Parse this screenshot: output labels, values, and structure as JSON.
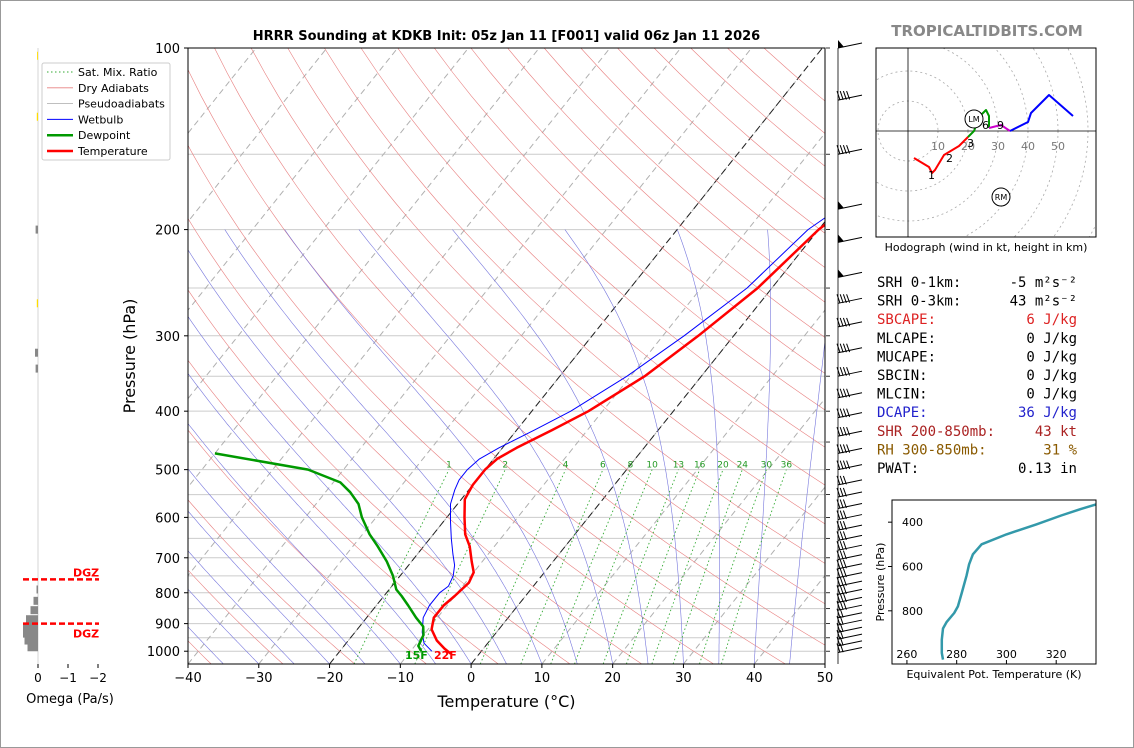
{
  "chart_data": [
    {
      "type": "skew-t",
      "title": "HRRR Sounding at KDKB Init: 05z Jan 11 [F001] valid 06z Jan 11 2026",
      "xlabel": "Temperature (°C)",
      "ylabel": "Pressure (hPa)",
      "xlim": [
        -40,
        50
      ],
      "ylim": [
        1050,
        100
      ],
      "x_ticks": [
        -40,
        -30,
        -20,
        -10,
        0,
        10,
        20,
        30,
        40,
        50
      ],
      "x_tick_labels": [
        "−40",
        "−30",
        "−20",
        "−10",
        "0",
        "10",
        "20",
        "30",
        "40",
        "50"
      ],
      "y_ticks": [
        1000,
        900,
        800,
        700,
        600,
        500,
        400,
        300,
        200,
        100
      ],
      "legend": [
        "Sat. Mix. Ratio",
        "Dry Adiabats",
        "Pseudoadiabats",
        "Wetbulb",
        "Dewpoint",
        "Temperature"
      ],
      "legend_position": "top-left",
      "mixing_ratio_labels": [
        "1",
        "2",
        "4",
        "6",
        "8",
        "10",
        "13",
        "16",
        "20",
        "24",
        "30",
        "36"
      ],
      "series": [
        {
          "name": "Temperature",
          "color": "#ff0000",
          "points": [
            [
              -4,
              1010
            ],
            [
              -5.5,
              990
            ],
            [
              -7.5,
              960
            ],
            [
              -9.5,
              920
            ],
            [
              -10.5,
              880
            ],
            [
              -10.5,
              840
            ],
            [
              -10,
              810
            ],
            [
              -9.5,
              770
            ],
            [
              -10,
              740
            ],
            [
              -11.5,
              710
            ],
            [
              -13.5,
              670
            ],
            [
              -15.5,
              640
            ],
            [
              -17.5,
              600
            ],
            [
              -19.5,
              560
            ],
            [
              -20,
              530
            ],
            [
              -20,
              500
            ],
            [
              -19.5,
              480
            ],
            [
              -18,
              460
            ],
            [
              -15,
              430
            ],
            [
              -12,
              400
            ],
            [
              -8,
              350
            ],
            [
              -5,
              300
            ],
            [
              -2,
              250
            ],
            [
              0,
              200
            ],
            [
              2,
              180
            ],
            [
              4,
              160
            ],
            [
              6,
              140
            ],
            [
              8,
              120
            ],
            [
              9,
              105
            ],
            [
              10,
              100
            ]
          ]
        },
        {
          "name": "Wetbulb",
          "color": "#0000ff",
          "points": [
            [
              -7,
              1000
            ],
            [
              -9,
              970
            ],
            [
              -10.5,
              930
            ],
            [
              -12,
              880
            ],
            [
              -12.5,
              840
            ],
            [
              -12.5,
              800
            ],
            [
              -12,
              780
            ],
            [
              -12.5,
              750
            ],
            [
              -13.5,
              720
            ],
            [
              -15,
              690
            ],
            [
              -17,
              650
            ],
            [
              -19,
              610
            ],
            [
              -21,
              570
            ],
            [
              -22,
              540
            ],
            [
              -22.5,
              520
            ],
            [
              -22.5,
              500
            ],
            [
              -22,
              480
            ],
            [
              -20.5,
              460
            ],
            [
              -17.5,
              430
            ],
            [
              -14.5,
              400
            ],
            [
              -10.5,
              350
            ],
            [
              -7,
              300
            ],
            [
              -3.5,
              250
            ],
            [
              -1.5,
              200
            ],
            [
              1,
              180
            ],
            [
              3,
              160
            ],
            [
              5,
              140
            ],
            [
              7,
              120
            ],
            [
              8.5,
              105
            ],
            [
              9.5,
              100
            ]
          ]
        },
        {
          "name": "Dewpoint",
          "color": "#009900",
          "points": [
            [
              -8.5,
              1000
            ],
            [
              -9.5,
              980
            ],
            [
              -10,
              940
            ],
            [
              -11,
              910
            ],
            [
              -13,
              880
            ],
            [
              -15.5,
              840
            ],
            [
              -17.5,
              810
            ],
            [
              -19,
              790
            ],
            [
              -21,
              750
            ],
            [
              -23.5,
              710
            ],
            [
              -26.5,
              670
            ],
            [
              -29,
              640
            ],
            [
              -32,
              600
            ],
            [
              -34,
              570
            ],
            [
              -36.5,
              545
            ],
            [
              -39,
              525
            ],
            [
              -45,
              500
            ],
            [
              -60,
              470
            ]
          ]
        }
      ],
      "annotations": [
        {
          "text": "15F",
          "color": "#009900"
        },
        {
          "text": "22F",
          "color": "#ff0000"
        }
      ]
    },
    {
      "type": "hodograph",
      "title": "Hodograph (wind in kt, height in km)",
      "ring_labels": [
        "10",
        "20",
        "30",
        "40",
        "50"
      ],
      "height_labels": [
        "1",
        "2",
        "3",
        "6",
        "9"
      ],
      "storm_markers": [
        "LM",
        "RM"
      ],
      "segments": [
        {
          "color": "#ff0000",
          "points": [
            [
              2,
              -9
            ],
            [
              7,
              -12
            ],
            [
              8,
              -14
            ],
            [
              9,
              -13
            ],
            [
              12,
              -8
            ],
            [
              17,
              -5
            ],
            [
              20,
              -2
            ]
          ]
        },
        {
          "color": "#009900",
          "points": [
            [
              20,
              -2
            ],
            [
              22,
              0
            ],
            [
              24,
              5
            ],
            [
              26,
              7
            ],
            [
              27,
              5
            ],
            [
              27,
              1
            ]
          ]
        },
        {
          "color": "#cc00cc",
          "points": [
            [
              27,
              1
            ],
            [
              31,
              2
            ],
            [
              34,
              0
            ]
          ]
        },
        {
          "color": "#0000ff",
          "points": [
            [
              34,
              0
            ],
            [
              40,
              3
            ],
            [
              41,
              6
            ],
            [
              47,
              12
            ],
            [
              55,
              5
            ]
          ]
        }
      ]
    },
    {
      "type": "line",
      "xlabel": "Equivalent Pot. Temperature (K)",
      "ylabel": "Pressure (hPa)",
      "x_ticks": [
        "260",
        "280",
        "300",
        "320"
      ],
      "y_ticks": [
        "400",
        "600",
        "800"
      ],
      "xlim": [
        254,
        336
      ],
      "ylim": [
        1040,
        300
      ],
      "series": [
        {
          "color": "#3399aa",
          "points": [
            [
              274.5,
              1020
            ],
            [
              274,
              990
            ],
            [
              274,
              930
            ],
            [
              274.5,
              880
            ],
            [
              276,
              850
            ],
            [
              279,
              810
            ],
            [
              280.5,
              780
            ],
            [
              282,
              720
            ],
            [
              284,
              640
            ],
            [
              285,
              590
            ],
            [
              286.5,
              545
            ],
            [
              290,
              500
            ],
            [
              300,
              455
            ],
            [
              312,
              410
            ],
            [
              322,
              370
            ],
            [
              330,
              340
            ],
            [
              336,
              320
            ]
          ]
        }
      ]
    },
    {
      "type": "bar",
      "xlabel": "Omega (Pa/s)",
      "x_ticks": [
        "0",
        "−1",
        "−2"
      ],
      "dgz_labels": [
        "DGZ",
        "DGZ"
      ],
      "dgz_pressures": [
        760,
        900
      ],
      "values": [
        {
          "p": 985,
          "v": 0.35,
          "color": "#888888"
        },
        {
          "p": 960,
          "v": 0.45,
          "color": "#888888"
        },
        {
          "p": 935,
          "v": 0.5,
          "color": "#888888"
        },
        {
          "p": 910,
          "v": 0.5,
          "color": "#888888"
        },
        {
          "p": 885,
          "v": 0.4,
          "color": "#888888"
        },
        {
          "p": 855,
          "v": 0.25,
          "color": "#888888"
        },
        {
          "p": 825,
          "v": 0.15,
          "color": "#888888"
        },
        {
          "p": 790,
          "v": 0.05,
          "color": "#888888"
        },
        {
          "p": 340,
          "v": 0.08,
          "color": "#888888"
        },
        {
          "p": 320,
          "v": 0.1,
          "color": "#888888"
        },
        {
          "p": 265,
          "v": 0.04,
          "color": "#ffdd00"
        },
        {
          "p": 200,
          "v": 0.08,
          "color": "#888888"
        },
        {
          "p": 130,
          "v": 0.04,
          "color": "#ffdd00"
        },
        {
          "p": 103,
          "v": 0.03,
          "color": "#ffdd00"
        }
      ]
    }
  ],
  "watermark": "TROPICALTIDBITS.COM",
  "indices": [
    {
      "label": "SRH 0-1km:",
      "value": "-5 m²s⁻²",
      "color": "#000000"
    },
    {
      "label": "SRH 0-3km:",
      "value": "43 m²s⁻²",
      "color": "#000000"
    },
    {
      "label": "SBCAPE:",
      "value": "6 J/kg",
      "color": "#dd2222"
    },
    {
      "label": "MLCAPE:",
      "value": "0 J/kg",
      "color": "#000000"
    },
    {
      "label": "MUCAPE:",
      "value": "0 J/kg",
      "color": "#000000"
    },
    {
      "label": "SBCIN:",
      "value": "0 J/kg",
      "color": "#000000"
    },
    {
      "label": "MLCIN:",
      "value": "0 J/kg",
      "color": "#000000"
    },
    {
      "label": "DCAPE:",
      "value": "36 J/kg",
      "color": "#2222cc"
    },
    {
      "label": "SHR 200-850mb:",
      "value": "43 kt",
      "color": "#aa2222"
    },
    {
      "label": "RH 300-850mb:",
      "value": "31 %",
      "color": "#8a5a00"
    },
    {
      "label": "PWAT:",
      "value": "0.13 in",
      "color": "#000000"
    }
  ]
}
